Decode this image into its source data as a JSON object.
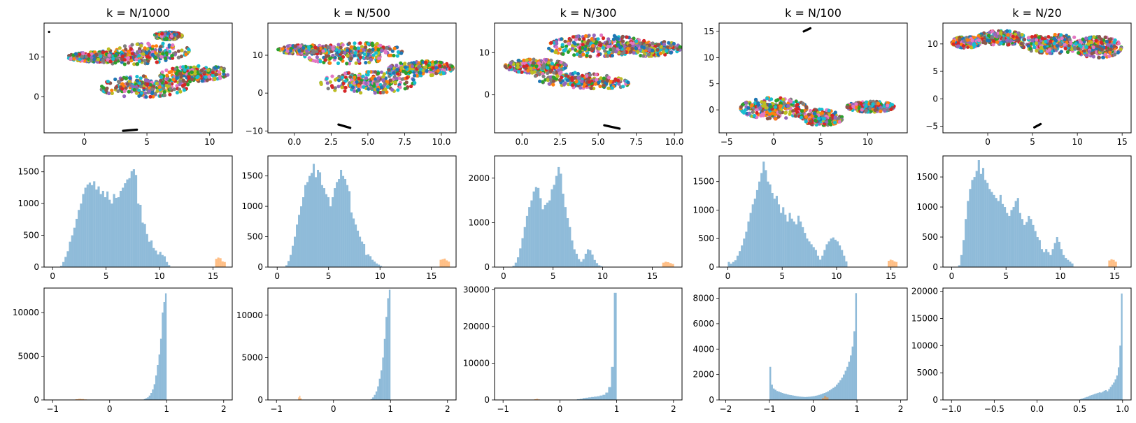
{
  "palette": {
    "hist_primary": "#1f77b4",
    "hist_secondary": "#ff7f0e",
    "scatter_colors": [
      "#1f77b4",
      "#ff7f0e",
      "#2ca02c",
      "#d62728",
      "#9467bd",
      "#8c564b",
      "#e377c2",
      "#7f7f7f",
      "#bcbd22",
      "#17becf"
    ],
    "outlier_color": "#000000"
  },
  "chart_data": [
    {
      "type": "scatter",
      "title": "k = N/1000",
      "xlim": [
        -3.2,
        11.8
      ],
      "ylim": [
        -9,
        18.5
      ],
      "xticks": [
        0,
        5,
        10
      ],
      "yticks": [
        0,
        10
      ],
      "clusters": [
        {
          "cx": 4.6,
          "cy": 10.8,
          "rx": 3.9,
          "ry": 2.4,
          "angle": 20
        },
        {
          "cx": 1.2,
          "cy": 10.0,
          "rx": 2.5,
          "ry": 1.2,
          "angle": 0
        },
        {
          "cx": 4.8,
          "cy": 2.6,
          "rx": 3.5,
          "ry": 2.6,
          "angle": 8
        },
        {
          "cx": 8.8,
          "cy": 5.8,
          "rx": 2.8,
          "ry": 1.9,
          "angle": 12
        },
        {
          "cx": 6.7,
          "cy": 15.3,
          "rx": 1.1,
          "ry": 0.9,
          "angle": 0
        }
      ],
      "outliers": [
        {
          "x": 3.1,
          "y": -8.5,
          "x2": 4.2,
          "y2": -8.2
        },
        {
          "x": -2.8,
          "y": 16.3,
          "x2": -2.8,
          "y2": 16.3
        }
      ]
    },
    {
      "type": "scatter",
      "title": "k = N/500",
      "xlim": [
        -1.8,
        11.0
      ],
      "ylim": [
        -10.5,
        18.5
      ],
      "xticks": [
        0.0,
        2.5,
        5.0,
        7.5,
        10.0
      ],
      "yticks": [
        -10,
        0,
        10
      ],
      "clusters": [
        {
          "cx": 4.0,
          "cy": 10.5,
          "rx": 3.4,
          "ry": 2.6,
          "angle": 20
        },
        {
          "cx": 0.8,
          "cy": 11.5,
          "rx": 1.9,
          "ry": 1.2,
          "angle": 0
        },
        {
          "cx": 5.0,
          "cy": 2.8,
          "rx": 3.2,
          "ry": 2.8,
          "angle": 8
        },
        {
          "cx": 8.6,
          "cy": 6.5,
          "rx": 2.2,
          "ry": 1.9,
          "angle": 12
        }
      ],
      "outliers": [
        {
          "x": 3.0,
          "y": -8.3,
          "x2": 3.8,
          "y2": -9.2
        }
      ]
    },
    {
      "type": "scatter",
      "title": "k = N/300",
      "xlim": [
        -1.8,
        10.5
      ],
      "ylim": [
        -9,
        17
      ],
      "xticks": [
        0.0,
        2.5,
        5.0,
        7.5,
        10.0
      ],
      "yticks": [
        0,
        10
      ],
      "clusters": [
        {
          "cx": 4.9,
          "cy": 11.6,
          "rx": 3.2,
          "ry": 2.5,
          "angle": 8
        },
        {
          "cx": 8.2,
          "cy": 11.0,
          "rx": 2.2,
          "ry": 1.8,
          "angle": 5
        },
        {
          "cx": 0.9,
          "cy": 6.8,
          "rx": 2.0,
          "ry": 1.6,
          "angle": 0
        },
        {
          "cx": 3.9,
          "cy": 3.4,
          "rx": 3.2,
          "ry": 1.7,
          "angle": -18
        }
      ],
      "outliers": [
        {
          "x": 5.4,
          "y": -7.2,
          "x2": 6.4,
          "y2": -8.0
        }
      ]
    },
    {
      "type": "scatter",
      "title": "k = N/100",
      "xlim": [
        -5.8,
        14.2
      ],
      "ylim": [
        -4.4,
        16.6
      ],
      "xticks": [
        -5,
        0,
        5,
        10
      ],
      "yticks": [
        0,
        5,
        10,
        15
      ],
      "clusters": [
        {
          "cx": 0.0,
          "cy": 0.3,
          "rx": 3.5,
          "ry": 2.0,
          "angle": 0
        },
        {
          "cx": 4.8,
          "cy": -1.4,
          "rx": 2.5,
          "ry": 1.5,
          "angle": -8
        },
        {
          "cx": 10.3,
          "cy": 0.6,
          "rx": 2.5,
          "ry": 1.0,
          "angle": 0
        }
      ],
      "outliers": [
        {
          "x": 3.2,
          "y": 15.0,
          "x2": 3.9,
          "y2": 15.6
        }
      ]
    },
    {
      "type": "scatter",
      "title": "k = N/20",
      "xlim": [
        -5.0,
        16.0
      ],
      "ylim": [
        -6.2,
        13.8
      ],
      "xticks": [
        0,
        5,
        10,
        15
      ],
      "yticks": [
        -5,
        0,
        5,
        10
      ],
      "clusters": [
        {
          "cx": 1.5,
          "cy": 11.1,
          "rx": 2.6,
          "ry": 1.3,
          "angle": 0
        },
        {
          "cx": -2.4,
          "cy": 10.3,
          "rx": 1.6,
          "ry": 1.0,
          "angle": 0
        },
        {
          "cx": 7.2,
          "cy": 10.0,
          "rx": 3.5,
          "ry": 1.7,
          "angle": 0
        },
        {
          "cx": 12.3,
          "cy": 9.4,
          "rx": 2.6,
          "ry": 1.9,
          "angle": 0
        }
      ],
      "outliers": [
        {
          "x": 5.2,
          "y": -5.2,
          "x2": 5.9,
          "y2": -4.6
        }
      ]
    },
    {
      "type": "bar",
      "variant": "histogram",
      "xlim": [
        -0.8,
        16.8
      ],
      "ylim": [
        0,
        1750
      ],
      "xticks": [
        0,
        5,
        10,
        15
      ],
      "yticks": [
        0,
        500,
        1000,
        1500
      ],
      "series": [
        {
          "bins": [
            0.7,
            11.0
          ],
          "values": [
            20,
            80,
            160,
            250,
            400,
            500,
            620,
            760,
            900,
            1000,
            1150,
            1250,
            1300,
            1330,
            1290,
            1350,
            1220,
            1270,
            1150,
            1200,
            1100,
            1190,
            1060,
            1000,
            1150,
            1090,
            1100,
            1200,
            1250,
            1320,
            1380,
            1400,
            1510,
            1540,
            1450,
            1000,
            980,
            700,
            680,
            520,
            400,
            420,
            300,
            260,
            200,
            240,
            190,
            170,
            80,
            30
          ]
        },
        {
          "bins": [
            15.2,
            16.2
          ],
          "values": [
            130,
            150,
            140,
            90,
            80
          ]
        }
      ]
    },
    {
      "type": "bar",
      "variant": "histogram",
      "xlim": [
        -0.9,
        17.4
      ],
      "ylim": [
        0,
        1830
      ],
      "xticks": [
        0,
        5,
        10,
        15
      ],
      "yticks": [
        0,
        500,
        1000,
        1500
      ],
      "series": [
        {
          "bins": [
            0.8,
            10.2
          ],
          "values": [
            30,
            100,
            200,
            350,
            500,
            700,
            860,
            1000,
            1150,
            1350,
            1400,
            1500,
            1550,
            1700,
            1480,
            1600,
            1560,
            1350,
            1300,
            1200,
            1150,
            1000,
            1150,
            1300,
            1400,
            1450,
            1600,
            1500,
            1450,
            1350,
            1250,
            900,
            800,
            700,
            600,
            500,
            420,
            380,
            200,
            210,
            180,
            120,
            90,
            60,
            40,
            20
          ]
        },
        {
          "bins": [
            15.8,
            16.8
          ],
          "values": [
            120,
            130,
            140,
            110,
            90
          ]
        }
      ]
    },
    {
      "type": "bar",
      "variant": "histogram",
      "xlim": [
        -0.9,
        18.0
      ],
      "ylim": [
        0,
        2500
      ],
      "xticks": [
        0,
        5,
        10,
        15
      ],
      "yticks": [
        0,
        1000,
        2000
      ],
      "series": [
        {
          "bins": [
            0.9,
            10.0
          ],
          "values": [
            30,
            100,
            220,
            420,
            650,
            900,
            1150,
            1350,
            1500,
            1700,
            1800,
            1780,
            1550,
            1300,
            1400,
            1450,
            1500,
            1750,
            1850,
            2050,
            2250,
            2100,
            1650,
            1350,
            1100,
            900,
            600,
            400,
            300,
            180,
            120,
            180,
            300,
            400,
            380,
            280,
            160,
            90,
            40,
            20
          ]
        },
        {
          "bins": [
            16.0,
            17.2
          ],
          "values": [
            100,
            120,
            110,
            90,
            70
          ]
        }
      ]
    },
    {
      "type": "bar",
      "variant": "histogram",
      "xlim": [
        -0.8,
        16.5
      ],
      "ylim": [
        0,
        1950
      ],
      "xticks": [
        0,
        5,
        10,
        15
      ],
      "yticks": [
        0,
        500,
        1000,
        1500
      ],
      "series": [
        {
          "bins": [
            0.0,
            11.0
          ],
          "values": [
            90,
            60,
            90,
            120,
            200,
            280,
            380,
            500,
            620,
            800,
            950,
            1100,
            1200,
            1350,
            1500,
            1650,
            1850,
            1700,
            1500,
            1450,
            1300,
            1200,
            1250,
            1100,
            950,
            1050,
            920,
            800,
            950,
            850,
            800,
            750,
            900,
            800,
            700,
            600,
            500,
            450,
            400,
            350,
            300,
            200,
            130,
            200,
            300,
            400,
            450,
            500,
            520,
            480,
            450,
            380,
            300,
            200,
            100
          ]
        },
        {
          "bins": [
            14.7,
            15.6
          ],
          "values": [
            110,
            130,
            120,
            100,
            90
          ]
        }
      ]
    },
    {
      "type": "bar",
      "variant": "histogram",
      "xlim": [
        -0.8,
        16.5
      ],
      "ylim": [
        0,
        1850
      ],
      "xticks": [
        0,
        5,
        10,
        15
      ],
      "yticks": [
        0,
        500,
        1000,
        1500
      ],
      "series": [
        {
          "bins": [
            0.6,
            11.2
          ],
          "values": [
            30,
            200,
            450,
            800,
            1100,
            1300,
            1450,
            1500,
            1600,
            1780,
            1550,
            1650,
            1450,
            1400,
            1300,
            1250,
            1200,
            1150,
            1100,
            1200,
            1050,
            1000,
            900,
            850,
            950,
            1000,
            1100,
            1150,
            900,
            800,
            700,
            750,
            850,
            800,
            700,
            600,
            500,
            450,
            300,
            250,
            300,
            250,
            200,
            300,
            400,
            500,
            420,
            300,
            200,
            150,
            120,
            90,
            60
          ]
        },
        {
          "bins": [
            14.4,
            15.2
          ],
          "values": [
            110,
            130,
            120,
            90
          ]
        }
      ]
    },
    {
      "type": "bar",
      "variant": "histogram",
      "xlim": [
        -1.15,
        2.15
      ],
      "ylim": [
        0,
        12800
      ],
      "xticks": [
        -1,
        0,
        1,
        2
      ],
      "yticks": [
        0,
        5000,
        10000
      ],
      "series": [
        {
          "bins": [
            0.6,
            1.0
          ],
          "values": [
            100,
            200,
            300,
            500,
            800,
            1200,
            1800,
            2800,
            4000,
            5200,
            7000,
            10000,
            11200,
            12200
          ]
        },
        {
          "bins": [
            -0.6,
            -0.4
          ],
          "values": [
            80,
            120,
            100,
            60
          ]
        }
      ]
    },
    {
      "type": "bar",
      "variant": "histogram",
      "xlim": [
        -1.15,
        2.15
      ],
      "ylim": [
        0,
        13200
      ],
      "xticks": [
        -1,
        0,
        1,
        2
      ],
      "yticks": [
        0,
        5000,
        10000
      ],
      "series": [
        {
          "bins": [
            0.65,
            1.0
          ],
          "values": [
            100,
            300,
            600,
            1000,
            1600,
            2500,
            3500,
            5000,
            7200,
            9800,
            12000,
            13000
          ]
        },
        {
          "bins": [
            -0.62,
            -0.56
          ],
          "values": [
            300,
            500,
            200
          ]
        }
      ]
    },
    {
      "type": "bar",
      "variant": "histogram",
      "xlim": [
        -1.15,
        2.15
      ],
      "ylim": [
        0,
        30500
      ],
      "xticks": [
        -1,
        0,
        1,
        2
      ],
      "yticks": [
        0,
        10000,
        20000,
        30000
      ],
      "series": [
        {
          "bins": [
            0.3,
            1.0
          ],
          "values": [
            200,
            300,
            500,
            600,
            700,
            800,
            900,
            1000,
            1200,
            1400,
            2000,
            3500,
            9000,
            29200
          ]
        },
        {
          "bins": [
            -0.45,
            -0.35
          ],
          "values": [
            200,
            300,
            150
          ]
        }
      ]
    },
    {
      "type": "bar",
      "variant": "histogram",
      "xlim": [
        -2.15,
        2.15
      ],
      "ylim": [
        0,
        8800
      ],
      "xticks": [
        -2,
        -1,
        0,
        1,
        2
      ],
      "yticks": [
        0,
        2000,
        4000,
        6000,
        8000
      ],
      "series": [
        {
          "bins": [
            -1.0,
            1.0
          ],
          "values": [
            2600,
            1200,
            900,
            800,
            700,
            650,
            600,
            550,
            500,
            470,
            430,
            400,
            380,
            350,
            330,
            300,
            280,
            260,
            250,
            240,
            230,
            240,
            250,
            260,
            280,
            300,
            330,
            360,
            400,
            450,
            500,
            550,
            600,
            680,
            760,
            850,
            950,
            1050,
            1200,
            1350,
            1550,
            1750,
            2000,
            2300,
            2600,
            3000,
            3500,
            4200,
            5400,
            8400
          ]
        },
        {
          "bins": [
            0.2,
            0.35
          ],
          "values": [
            150,
            300,
            200
          ]
        }
      ]
    },
    {
      "type": "bar",
      "variant": "histogram",
      "xlim": [
        -1.1,
        1.1
      ],
      "ylim": [
        0,
        20600
      ],
      "xticks": [
        -1.0,
        -0.5,
        0.0,
        0.5,
        1.0
      ],
      "yticks": [
        0,
        5000,
        10000,
        15000,
        20000
      ],
      "series": [
        {
          "bins": [
            0.5,
            1.0
          ],
          "values": [
            150,
            250,
            350,
            450,
            550,
            650,
            800,
            900,
            1000,
            1100,
            1200,
            1300,
            1400,
            1350,
            1500,
            1700,
            1800,
            1600,
            2000,
            2400,
            2800,
            3200,
            3800,
            4500,
            6000,
            10000,
            19600
          ]
        }
      ]
    }
  ]
}
